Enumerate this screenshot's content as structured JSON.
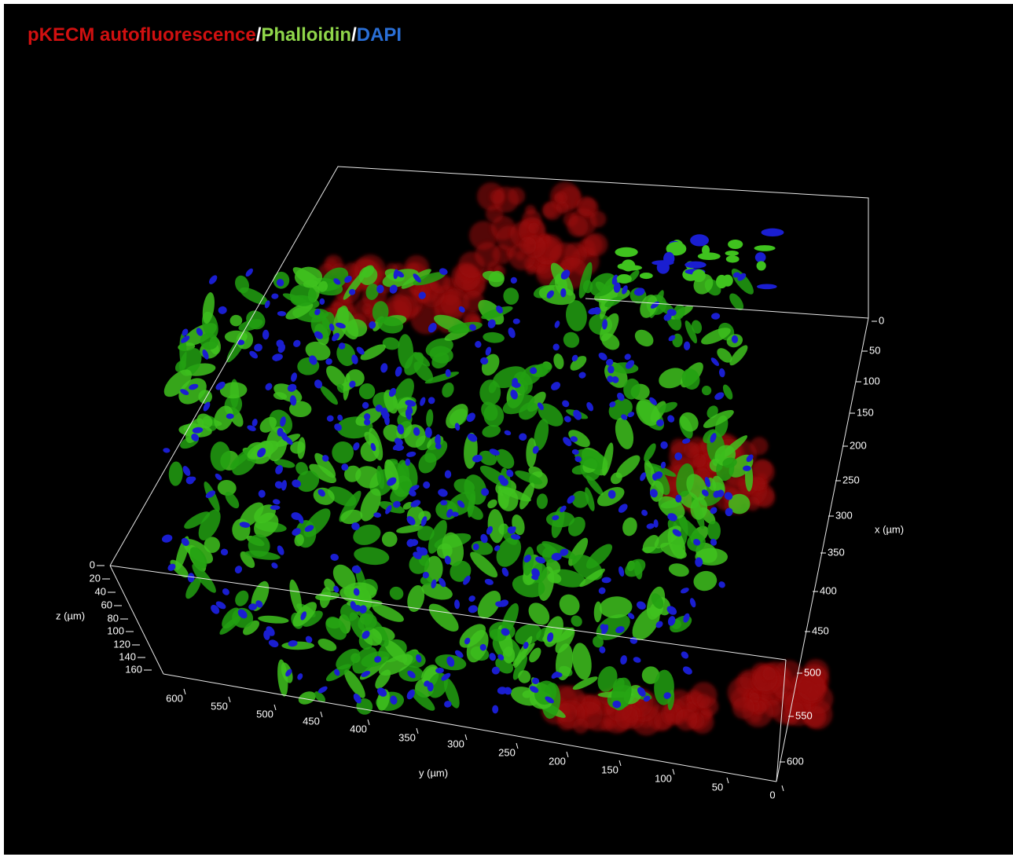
{
  "title": [
    "pKECM autofluorescence",
    "/",
    "Phalloidin",
    "/",
    "DAPI"
  ],
  "axes": {
    "x": {
      "label": "x (µm)",
      "ticks": [
        0,
        50,
        100,
        150,
        200,
        250,
        300,
        350,
        400,
        450,
        500,
        550,
        600
      ]
    },
    "y": {
      "label": "y (µm)",
      "ticks": [
        600,
        550,
        500,
        450,
        400,
        350,
        300,
        250,
        200,
        150,
        100,
        50,
        0
      ]
    },
    "z": {
      "label": "z (µm)",
      "ticks": [
        0,
        20,
        40,
        60,
        80,
        100,
        120,
        140,
        160
      ]
    }
  }
}
